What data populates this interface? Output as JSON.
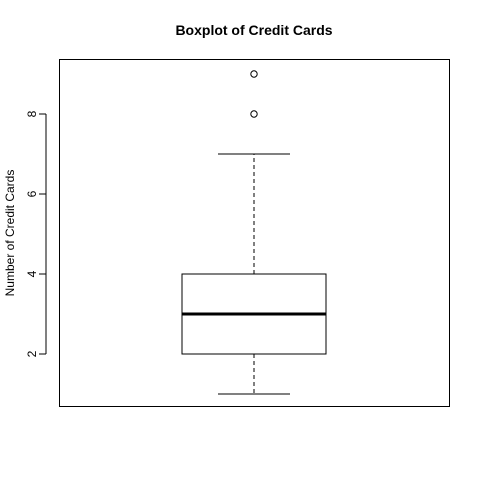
{
  "chart_data": {
    "type": "boxplot",
    "title": "Boxplot of Credit Cards",
    "xlabel": "",
    "ylabel": "Number of Credit Cards",
    "ylim": [
      0.7,
      9.35
    ],
    "yticks": [
      2,
      4,
      6,
      8
    ],
    "ytick_labels": [
      "2",
      "4",
      "6",
      "8"
    ],
    "grid": false,
    "box": {
      "min": 1,
      "q1": 2,
      "median": 3,
      "q3": 4,
      "max": 7,
      "outliers": [
        8,
        9
      ]
    },
    "colors": {
      "stroke": "#000000",
      "background": "#ffffff"
    }
  }
}
